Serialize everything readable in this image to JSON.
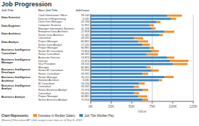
{
  "chart_data": {
    "type": "bar",
    "orientation": "horizontal",
    "stacked": true,
    "title": "Job Progression",
    "column_headers": [
      "Job Title",
      "Next Job Title",
      "JobCount"
    ],
    "groups": [
      {
        "name": "Data Scientist",
        "categories": [
          "Chief Information Officer",
          "Director of Engineering"
        ],
        "count_labels": [
          "18,100",
          "4,545"
        ]
      },
      {
        "name": "Data Engineer",
        "categories": [
          "Client Dev Manager",
          "Computer Scientist",
          "Manager Information Systems"
        ],
        "count_labels": [
          "41,596",
          "11,852",
          "41,596"
        ]
      },
      {
        "name": "Data Architect",
        "categories": [
          "Enterprise Data Architect",
          "Senior Data Architect"
        ],
        "count_labels": [
          "22,818",
          "11,441"
        ]
      },
      {
        "name": "Data Analyst",
        "categories": [
          "Consultant",
          "Project Manager",
          "Senior Data Analyst"
        ],
        "count_labels": [
          "43,265",
          "60,865",
          "27,235"
        ]
      },
      {
        "name": "Business Intelligence\nConsultant",
        "categories": [
          "Project Manager",
          "Senior BI Consultant",
          "Senior Consultant"
        ],
        "count_labels": [
          "60,865",
          "75,824",
          "43,265"
        ]
      },
      {
        "name": "Business Intelligence\nManager",
        "categories": [
          "Associate Director",
          "Director",
          "Vice President"
        ],
        "count_labels": [
          "13,874",
          "11,874",
          "18,100"
        ]
      },
      {
        "name": "Business Intelligence\nDeveloper",
        "categories": [
          "Manager",
          "Senior BI Consultant",
          "Senior Consultant"
        ],
        "count_labels": [
          "60,865",
          "75,824",
          "43,265"
        ]
      },
      {
        "name": "Business Intelligence\nArchitect",
        "categories": [
          "Senior Manager",
          "Solution Architect"
        ],
        "count_labels": [
          "35,211",
          "3,045"
        ]
      },
      {
        "name": "Business Intelligence\nAnalyst",
        "categories": [
          "BI Consultant",
          "Consultant",
          "Senior Business Analyst"
        ],
        "count_labels": [
          "13,234",
          "43,265",
          "75,924"
        ]
      },
      {
        "name": "Business Analyst",
        "categories": [
          "Consultant",
          "Project Manager",
          "Senior Business Analyst"
        ],
        "count_labels": [
          "43,265",
          "60,865",
          "75,924"
        ]
      }
    ],
    "series": [
      {
        "name": "Job Title Median Pay",
        "color": "#3B87C4",
        "values": [
          93000,
          98000,
          80000,
          72000,
          74000,
          90000,
          84000,
          53000,
          58000,
          63000,
          72000,
          74000,
          68000,
          93000,
          97000,
          100000,
          68000,
          74000,
          63000,
          90000,
          83000,
          59000,
          53000,
          63000,
          53000,
          58000,
          63000
        ]
      },
      {
        "name": "Increase in Median Salary",
        "color": "#F0902A",
        "values": [
          18000,
          6000,
          5000,
          5000,
          5000,
          12000,
          4000,
          11000,
          12000,
          9000,
          5000,
          9000,
          14000,
          9000,
          22000,
          18000,
          5000,
          9000,
          7000,
          11000,
          4000,
          7000,
          6000,
          7000,
          6000,
          11000,
          7000
        ]
      }
    ],
    "xlabel": "Value",
    "xlim": [
      0,
      125000
    ],
    "xticks": [
      {
        "value": 0,
        "label": "0K"
      },
      {
        "value": 25000,
        "label": "25K"
      },
      {
        "value": 50000,
        "label": "50K"
      },
      {
        "value": 75000,
        "label": "75K"
      },
      {
        "value": 100000,
        "label": "100K"
      },
      {
        "value": 125000,
        "label": "125K"
      }
    ],
    "grid": true,
    "legend": "lower left",
    "legend_title": "Chart Represents:",
    "footer": "[Source] Glassdoor API (Job progression data as of Sep 8, 2015"
  }
}
